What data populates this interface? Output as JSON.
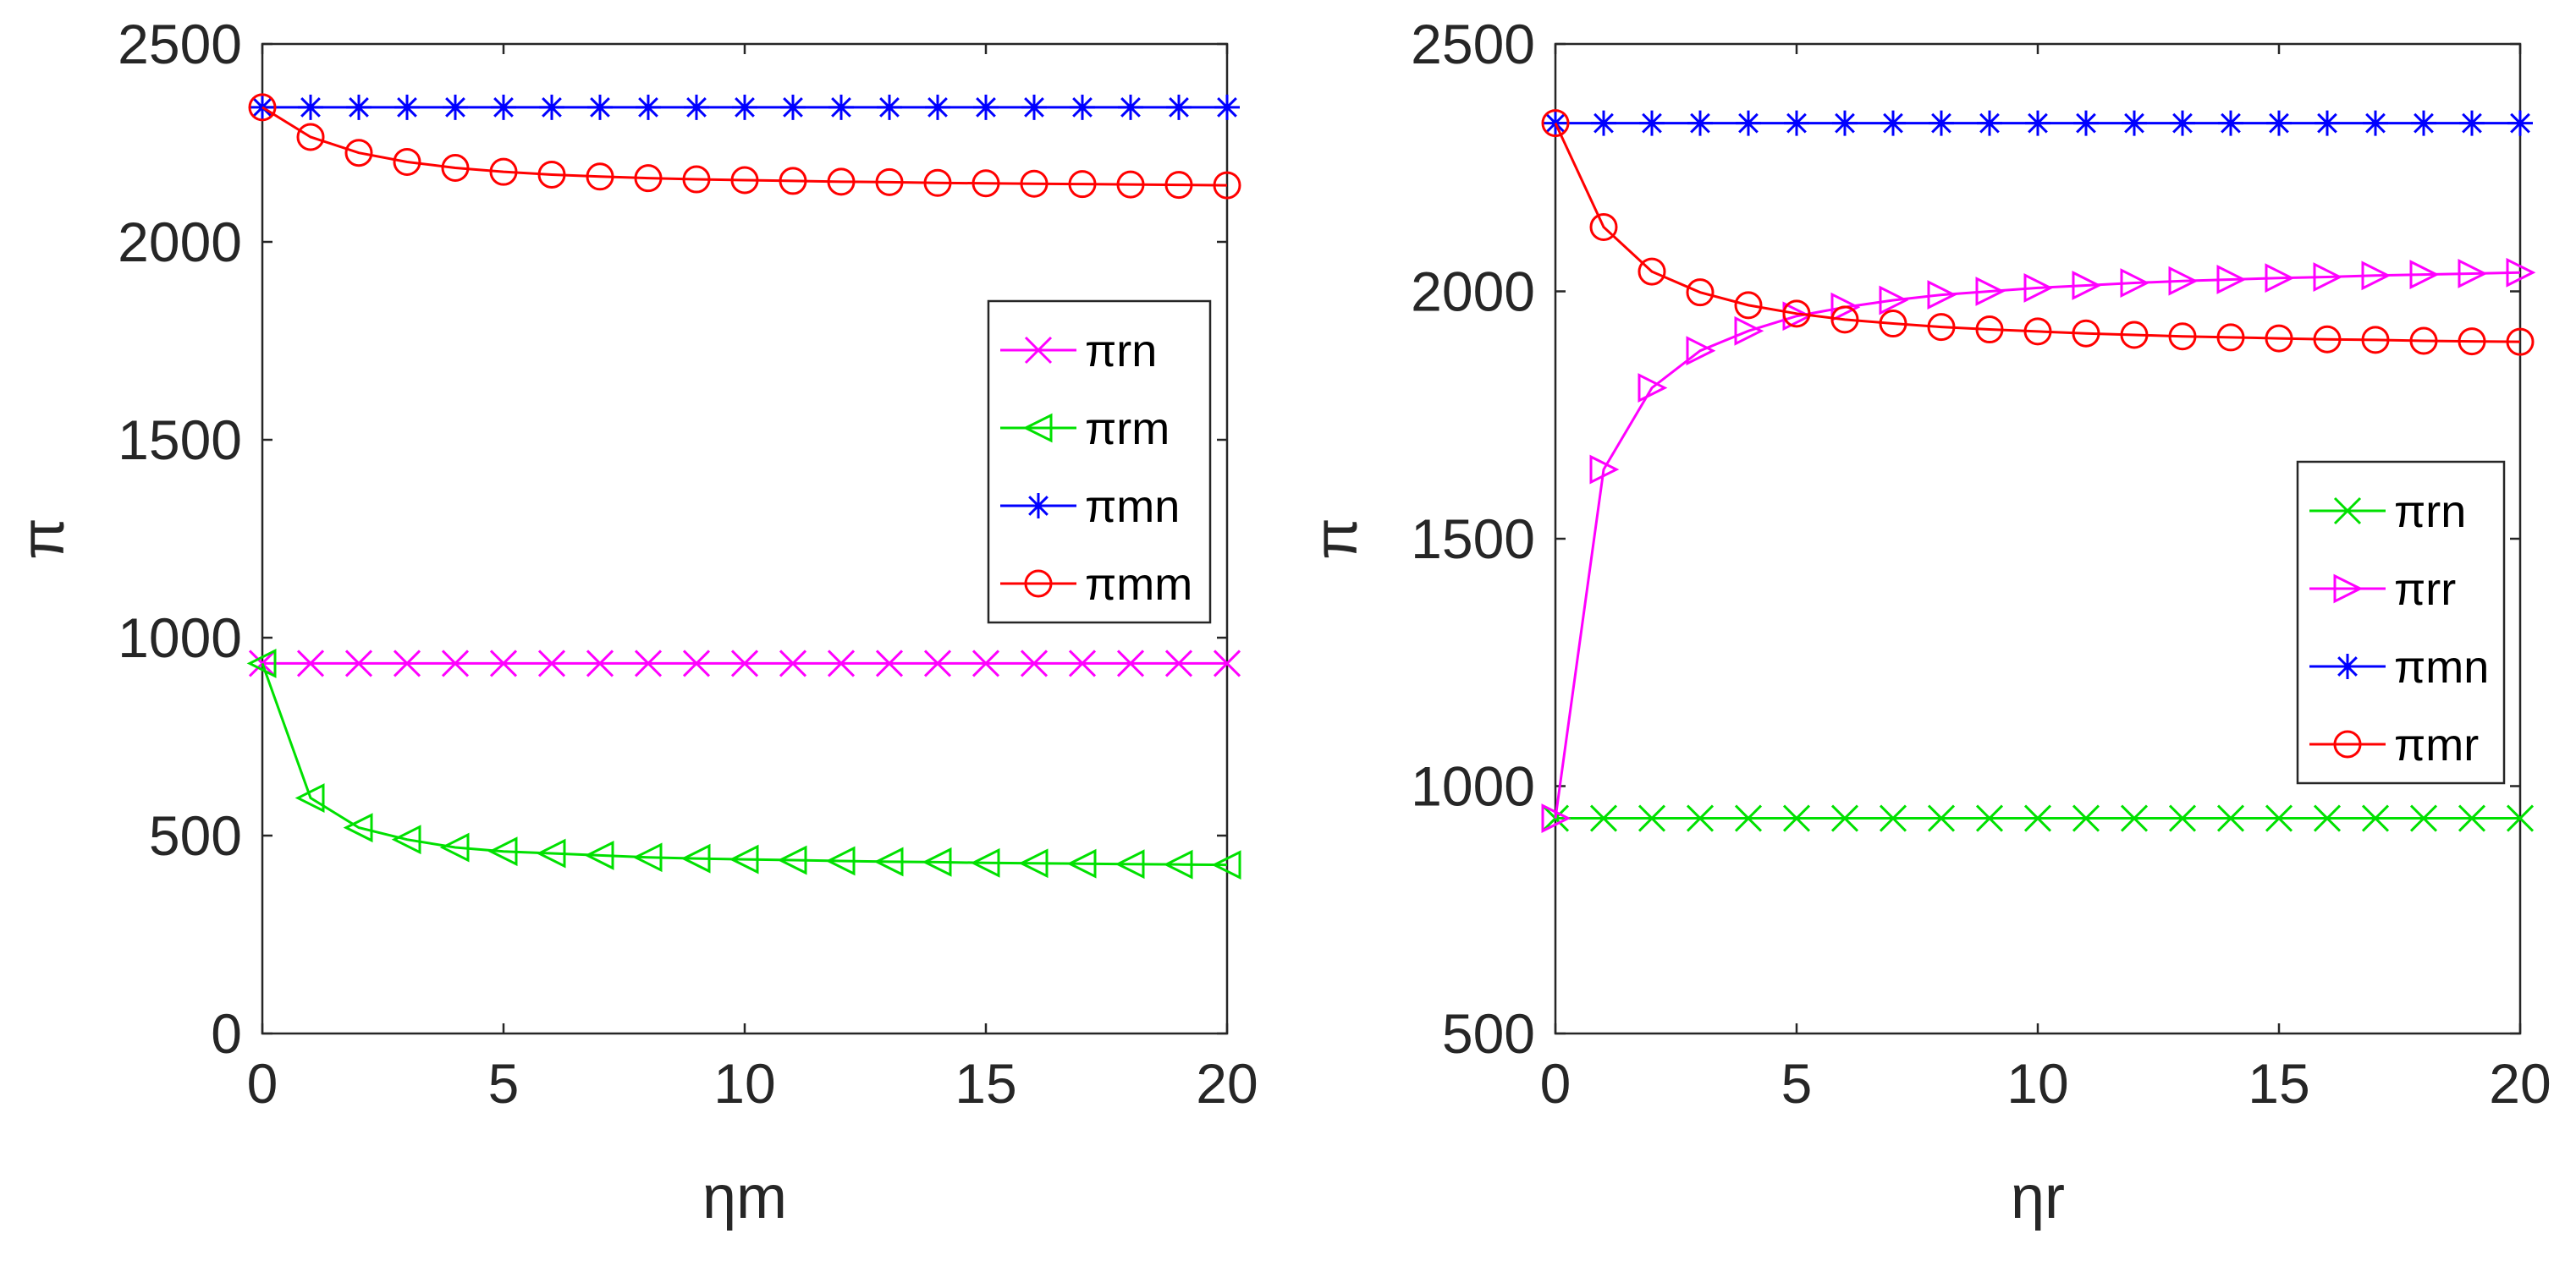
{
  "chart_data": [
    {
      "type": "line",
      "xlabel": "ηm",
      "ylabel": "π",
      "xlim": [
        0,
        20
      ],
      "ylim": [
        0,
        2500
      ],
      "xticks": [
        "0",
        "5",
        "10",
        "15",
        "20"
      ],
      "yticks": [
        "0",
        "500",
        "1000",
        "1500",
        "2000",
        "2500"
      ],
      "x": [
        0,
        1,
        2,
        3,
        4,
        5,
        6,
        7,
        8,
        9,
        10,
        11,
        12,
        13,
        14,
        15,
        16,
        17,
        18,
        19,
        20
      ],
      "legend_position": "right",
      "series": [
        {
          "name": "πrn",
          "color": "#ff00ff",
          "marker": "x",
          "values": [
            935,
            935,
            935,
            935,
            935,
            935,
            935,
            935,
            935,
            935,
            935,
            935,
            935,
            935,
            935,
            935,
            935,
            935,
            935,
            935,
            935
          ]
        },
        {
          "name": "πrm",
          "color": "#00e000",
          "marker": "triangle-left",
          "values": [
            935,
            595,
            520,
            490,
            470,
            460,
            455,
            450,
            445,
            442,
            440,
            438,
            436,
            434,
            433,
            431,
            430,
            429,
            428,
            427,
            426
          ]
        },
        {
          "name": "πmn",
          "color": "#0000ff",
          "marker": "asterisk",
          "values": [
            2340,
            2340,
            2340,
            2340,
            2340,
            2340,
            2340,
            2340,
            2340,
            2340,
            2340,
            2340,
            2340,
            2340,
            2340,
            2340,
            2340,
            2340,
            2340,
            2340,
            2340
          ]
        },
        {
          "name": "πmm",
          "color": "#ff0000",
          "marker": "circle",
          "values": [
            2340,
            2265,
            2225,
            2202,
            2187,
            2177,
            2170,
            2165,
            2161,
            2158,
            2156,
            2154,
            2152,
            2151,
            2149,
            2148,
            2147,
            2146,
            2145,
            2144,
            2143
          ]
        }
      ]
    },
    {
      "type": "line",
      "xlabel": "ηr",
      "ylabel": "π",
      "xlim": [
        0,
        20
      ],
      "ylim": [
        500,
        2500
      ],
      "xticks": [
        "0",
        "5",
        "10",
        "15",
        "20"
      ],
      "yticks": [
        "500",
        "1000",
        "1500",
        "2000",
        "2500"
      ],
      "x": [
        0,
        1,
        2,
        3,
        4,
        5,
        6,
        7,
        8,
        9,
        10,
        11,
        12,
        13,
        14,
        15,
        16,
        17,
        18,
        19,
        20
      ],
      "legend_position": "right",
      "series": [
        {
          "name": "πrn",
          "color": "#00e000",
          "marker": "x",
          "values": [
            935,
            935,
            935,
            935,
            935,
            935,
            935,
            935,
            935,
            935,
            935,
            935,
            935,
            935,
            935,
            935,
            935,
            935,
            935,
            935,
            935
          ]
        },
        {
          "name": "πrr",
          "color": "#ff00ff",
          "marker": "triangle-right",
          "values": [
            935,
            1640,
            1805,
            1880,
            1920,
            1950,
            1968,
            1982,
            1993,
            2000,
            2007,
            2012,
            2017,
            2021,
            2024,
            2027,
            2029,
            2032,
            2034,
            2036,
            2038
          ]
        },
        {
          "name": "πmn",
          "color": "#0000ff",
          "marker": "asterisk",
          "values": [
            2340,
            2340,
            2340,
            2340,
            2340,
            2340,
            2340,
            2340,
            2340,
            2340,
            2340,
            2340,
            2340,
            2340,
            2340,
            2340,
            2340,
            2340,
            2340,
            2340,
            2340
          ]
        },
        {
          "name": "πmr",
          "color": "#ff0000",
          "marker": "circle",
          "values": [
            2340,
            2130,
            2040,
            1998,
            1972,
            1955,
            1943,
            1935,
            1928,
            1923,
            1919,
            1915,
            1912,
            1909,
            1907,
            1905,
            1903,
            1902,
            1900,
            1899,
            1898
          ]
        }
      ]
    }
  ]
}
